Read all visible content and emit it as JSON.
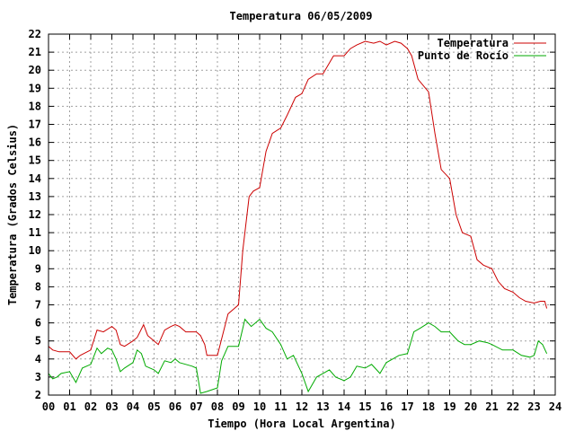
{
  "chart_data": {
    "type": "line",
    "title": "Temperatura 06/05/2009",
    "xlabel": "Tiempo (Hora Local Argentina)",
    "ylabel": "Temperatura (Grados Celsius)",
    "xlim": [
      0,
      24
    ],
    "ylim": [
      2,
      22
    ],
    "x_ticks": [
      "00",
      "01",
      "02",
      "03",
      "04",
      "05",
      "06",
      "07",
      "08",
      "09",
      "10",
      "11",
      "12",
      "13",
      "14",
      "15",
      "16",
      "17",
      "18",
      "19",
      "20",
      "21",
      "22",
      "23",
      "24"
    ],
    "y_ticks": [
      "2",
      "3",
      "4",
      "5",
      "6",
      "7",
      "8",
      "9",
      "10",
      "11",
      "12",
      "13",
      "14",
      "15",
      "16",
      "17",
      "18",
      "19",
      "20",
      "21",
      "22"
    ],
    "grid": true,
    "legend_position": "top-right",
    "series": [
      {
        "name": "Temperatura",
        "color": "#cc0000",
        "x": [
          0,
          0.2,
          0.5,
          1.0,
          1.3,
          1.5,
          2.0,
          2.3,
          2.6,
          3.0,
          3.2,
          3.4,
          3.6,
          4.0,
          4.2,
          4.5,
          4.7,
          5.0,
          5.2,
          5.5,
          5.8,
          6.0,
          6.2,
          6.5,
          7.0,
          7.2,
          7.4,
          7.5,
          8.0,
          8.5,
          9.0,
          9.2,
          9.5,
          9.7,
          10.0,
          10.3,
          10.6,
          11.0,
          11.3,
          11.7,
          12.0,
          12.3,
          12.7,
          13.0,
          13.5,
          13.7,
          14.0,
          14.3,
          14.6,
          15.0,
          15.4,
          15.7,
          16.0,
          16.4,
          16.7,
          17.0,
          17.2,
          17.5,
          18.0,
          18.3,
          18.6,
          19.0,
          19.3,
          19.6,
          20.0,
          20.3,
          20.6,
          21.0,
          21.3,
          21.6,
          22.0,
          22.3,
          22.6,
          23.0,
          23.3,
          23.5,
          23.6
        ],
        "values": [
          4.7,
          4.5,
          4.4,
          4.4,
          4.0,
          4.2,
          4.5,
          5.6,
          5.5,
          5.8,
          5.6,
          4.8,
          4.7,
          5.0,
          5.2,
          5.9,
          5.3,
          5.0,
          4.8,
          5.6,
          5.8,
          5.9,
          5.8,
          5.5,
          5.5,
          5.3,
          4.8,
          4.2,
          4.2,
          6.5,
          7.0,
          10.0,
          13.0,
          13.3,
          13.5,
          15.5,
          16.5,
          16.8,
          17.5,
          18.5,
          18.7,
          19.5,
          19.8,
          19.8,
          20.8,
          20.8,
          20.8,
          21.2,
          21.4,
          21.6,
          21.5,
          21.6,
          21.4,
          21.6,
          21.5,
          21.2,
          20.8,
          19.5,
          18.8,
          16.5,
          14.5,
          14.0,
          12.0,
          11.0,
          10.8,
          9.5,
          9.2,
          9.0,
          8.3,
          7.9,
          7.7,
          7.4,
          7.2,
          7.1,
          7.2,
          7.2,
          6.8
        ]
      },
      {
        "name": "Punto de Rocío",
        "color": "#00aa00",
        "x": [
          0,
          0.2,
          0.4,
          0.6,
          1.0,
          1.3,
          1.6,
          2.0,
          2.3,
          2.5,
          2.8,
          3.0,
          3.2,
          3.4,
          3.6,
          4.0,
          4.2,
          4.4,
          4.6,
          5.0,
          5.2,
          5.5,
          5.8,
          6.0,
          6.2,
          6.5,
          6.8,
          7.0,
          7.2,
          7.5,
          8.0,
          8.2,
          8.5,
          9.0,
          9.3,
          9.6,
          10.0,
          10.3,
          10.6,
          11.0,
          11.3,
          11.6,
          12.0,
          12.3,
          12.7,
          13.0,
          13.3,
          13.6,
          14.0,
          14.3,
          14.6,
          15.0,
          15.3,
          15.7,
          16.0,
          16.3,
          16.6,
          17.0,
          17.3,
          17.6,
          18.0,
          18.3,
          18.6,
          19.0,
          19.4,
          19.7,
          20.0,
          20.4,
          20.8,
          21.0,
          21.5,
          22.0,
          22.4,
          22.8,
          23.0,
          23.2,
          23.4,
          23.6
        ],
        "values": [
          3.2,
          2.9,
          3.0,
          3.2,
          3.3,
          2.7,
          3.5,
          3.7,
          4.6,
          4.3,
          4.6,
          4.5,
          4.0,
          3.3,
          3.5,
          3.8,
          4.5,
          4.3,
          3.6,
          3.4,
          3.2,
          3.9,
          3.8,
          4.0,
          3.8,
          3.7,
          3.6,
          3.5,
          2.1,
          2.2,
          2.4,
          3.9,
          4.7,
          4.7,
          6.2,
          5.8,
          6.2,
          5.7,
          5.5,
          4.8,
          4.0,
          4.2,
          3.2,
          2.2,
          3.0,
          3.2,
          3.4,
          3.0,
          2.8,
          3.0,
          3.6,
          3.5,
          3.7,
          3.2,
          3.8,
          4.0,
          4.2,
          4.3,
          5.5,
          5.7,
          6.0,
          5.8,
          5.5,
          5.5,
          5.0,
          4.8,
          4.8,
          5.0,
          4.9,
          4.8,
          4.5,
          4.5,
          4.2,
          4.1,
          4.2,
          5.0,
          4.8,
          4.3
        ]
      }
    ]
  }
}
